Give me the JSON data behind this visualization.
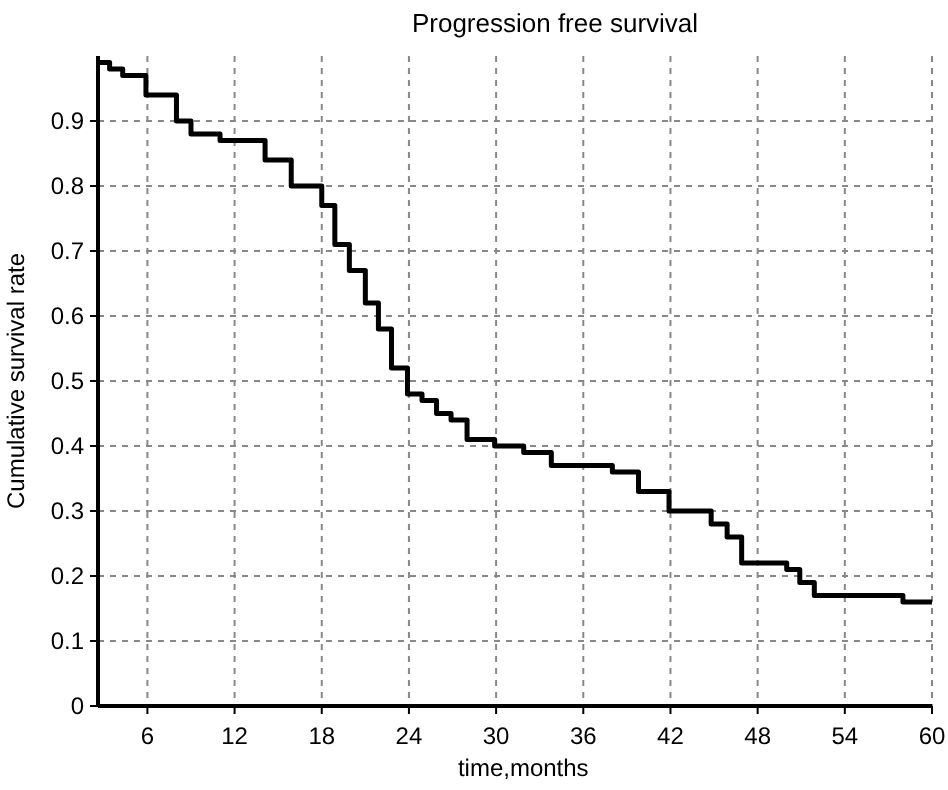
{
  "chart_data": {
    "type": "step",
    "title": "Progression free survival",
    "xlabel": "time,months",
    "ylabel": "Cumulative survival rate",
    "xlim": [
      2.6,
      60
    ],
    "xticks": [
      6,
      12,
      18,
      24,
      30,
      36,
      42,
      48,
      54,
      60
    ],
    "ylim": [
      0,
      1
    ],
    "yticks": [
      0,
      0.1,
      0.2,
      0.3,
      0.4,
      0.5,
      0.6,
      0.7,
      0.8,
      0.9
    ],
    "grid": true,
    "line_style": "solid",
    "marker": "none",
    "series": [
      {
        "color": "#000000",
        "x": [
          2.6,
          3.4,
          4.3,
          5.9,
          8.0,
          9.0,
          11.0,
          14.1,
          15.9,
          18.0,
          18.9,
          19.9,
          21.0,
          21.9,
          22.8,
          23.9,
          24.9,
          25.9,
          26.9,
          28.0,
          29.9,
          31.9,
          33.8,
          38.0,
          39.8,
          41.9,
          44.8,
          45.9,
          46.9,
          50.0,
          50.9,
          51.9,
          58.0,
          60
        ],
        "values": [
          0.99,
          0.98,
          0.97,
          0.94,
          0.9,
          0.88,
          0.87,
          0.84,
          0.8,
          0.77,
          0.71,
          0.67,
          0.62,
          0.58,
          0.52,
          0.48,
          0.47,
          0.45,
          0.44,
          0.41,
          0.4,
          0.39,
          0.37,
          0.36,
          0.33,
          0.3,
          0.28,
          0.26,
          0.22,
          0.21,
          0.19,
          0.17,
          0.16,
          0.16
        ]
      }
    ]
  }
}
